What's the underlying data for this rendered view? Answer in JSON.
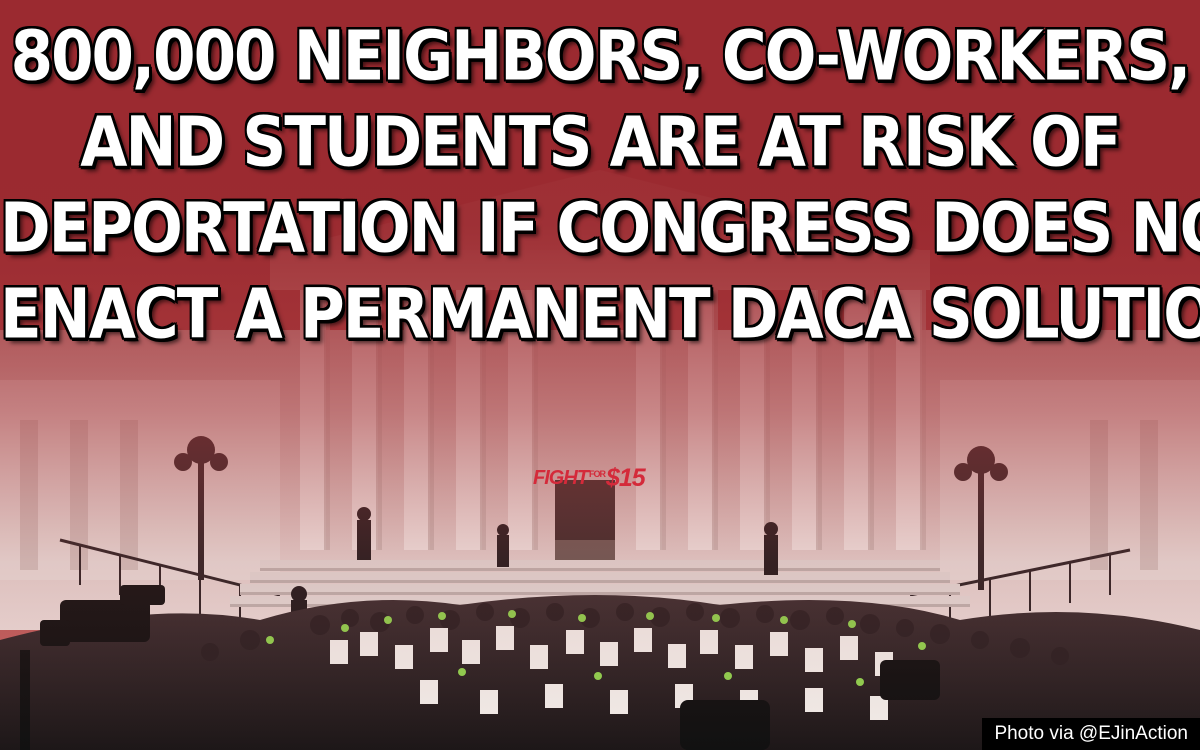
{
  "headline": {
    "lines": [
      "800,000 NEIGHBORS, CO-WORKERS,",
      "AND STUDENTS ARE AT RISK OF",
      "DEPORTATION IF CONGRESS DOES NOT",
      "ENACT A PERMANENT DACA SOLUTION"
    ]
  },
  "logo": {
    "word": "FIGHT",
    "mid": "FOR",
    "amount": "$15"
  },
  "credit": "Photo via @EJinAction",
  "colors": {
    "overlay_red": "#9b2a30",
    "headline_text": "#ffffff",
    "headline_outline": "#000000",
    "logo": "#d42a3a",
    "credit_bg": "#000000",
    "credit_text": "#ffffff"
  }
}
